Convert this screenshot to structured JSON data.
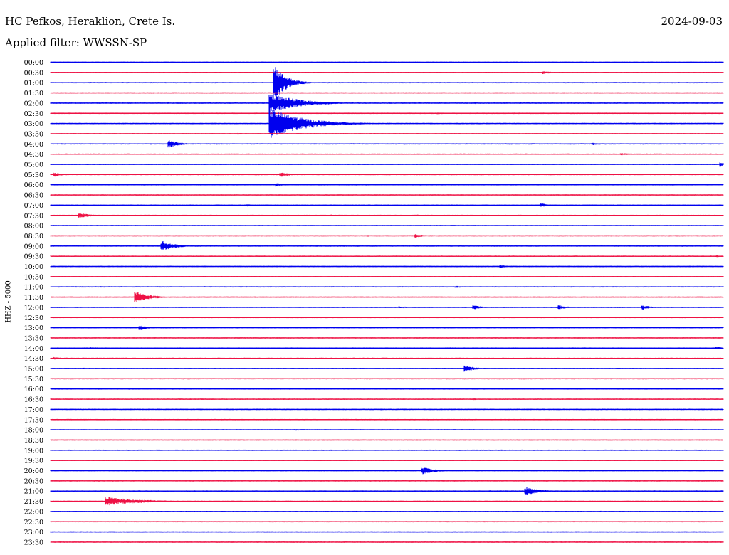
{
  "header": {
    "station": "HC Pefkos, Heraklion, Crete Is.",
    "date": "2024-09-03",
    "filter_prefix": "Applied filter: ",
    "filter_name": "WWSSN-SP"
  },
  "colors": {
    "trace_a": "#0000ee",
    "trace_b": "#ee1144",
    "text": "#000000",
    "background": "#ffffff"
  },
  "chart_data": {
    "type": "line",
    "subtype": "helicorder",
    "ylabel": "HHZ - 5000",
    "rows": [
      "00:00",
      "00:30",
      "01:00",
      "01:30",
      "02:00",
      "02:30",
      "03:00",
      "03:30",
      "04:00",
      "04:30",
      "05:00",
      "05:30",
      "06:00",
      "06:30",
      "07:00",
      "07:30",
      "08:00",
      "08:30",
      "09:00",
      "09:30",
      "10:00",
      "10:30",
      "11:00",
      "11:30",
      "12:00",
      "12:30",
      "13:00",
      "13:30",
      "14:00",
      "14:30",
      "15:00",
      "15:30",
      "16:00",
      "16:30",
      "17:00",
      "17:30",
      "18:00",
      "18:30",
      "19:00",
      "19:30",
      "20:00",
      "20:30",
      "21:00",
      "21:30",
      "22:00",
      "22:30",
      "23:00",
      "23:30"
    ],
    "row_minutes": 30,
    "row_colors_alternate": [
      "#0000ee",
      "#ee1144"
    ],
    "events": [
      {
        "row": 0,
        "minute": 3.5,
        "amp": 1.0,
        "dur": 1.2
      },
      {
        "row": 1,
        "minute": 7.9,
        "amp": 0.8,
        "dur": 1.0
      },
      {
        "row": 1,
        "minute": 19.9,
        "amp": 0.7,
        "dur": 1.2
      },
      {
        "row": 1,
        "minute": 22.0,
        "amp": 2.2,
        "dur": 1.2
      },
      {
        "row": 2,
        "minute": 10.0,
        "amp": 26.0,
        "dur": 1.6
      },
      {
        "row": 4,
        "minute": 9.8,
        "amp": 14.0,
        "dur": 4.0
      },
      {
        "row": 4,
        "minute": 19.0,
        "amp": 1.2,
        "dur": 1.0
      },
      {
        "row": 5,
        "minute": 17.3,
        "amp": 1.2,
        "dur": 1.2
      },
      {
        "row": 6,
        "minute": 9.8,
        "amp": 22.0,
        "dur": 4.5
      },
      {
        "row": 7,
        "minute": 8.4,
        "amp": 1.2,
        "dur": 1.0
      },
      {
        "row": 8,
        "minute": 5.3,
        "amp": 5.0,
        "dur": 1.6
      },
      {
        "row": 8,
        "minute": 24.2,
        "amp": 1.8,
        "dur": 1.0
      },
      {
        "row": 9,
        "minute": 25.5,
        "amp": 1.5,
        "dur": 3.0
      },
      {
        "row": 10,
        "minute": 29.9,
        "amp": 3.5,
        "dur": 0.6
      },
      {
        "row": 11,
        "minute": 0.2,
        "amp": 3.0,
        "dur": 1.0
      },
      {
        "row": 11,
        "minute": 10.3,
        "amp": 3.2,
        "dur": 1.4
      },
      {
        "row": 12,
        "minute": 10.1,
        "amp": 2.5,
        "dur": 0.8
      },
      {
        "row": 14,
        "minute": 8.8,
        "amp": 2.0,
        "dur": 1.0
      },
      {
        "row": 14,
        "minute": 21.9,
        "amp": 2.8,
        "dur": 1.0
      },
      {
        "row": 15,
        "minute": 1.3,
        "amp": 4.0,
        "dur": 1.6
      },
      {
        "row": 15,
        "minute": 12.5,
        "amp": 1.2,
        "dur": 1.2
      },
      {
        "row": 15,
        "minute": 16.3,
        "amp": 1.5,
        "dur": 1.2
      },
      {
        "row": 17,
        "minute": 14.2,
        "amp": 1.2,
        "dur": 1.0
      },
      {
        "row": 17,
        "minute": 16.3,
        "amp": 2.8,
        "dur": 1.2
      },
      {
        "row": 18,
        "minute": 5.0,
        "amp": 7.0,
        "dur": 1.8
      },
      {
        "row": 18,
        "minute": 11.9,
        "amp": 1.2,
        "dur": 1.0
      },
      {
        "row": 19,
        "minute": 29.7,
        "amp": 1.5,
        "dur": 0.8
      },
      {
        "row": 20,
        "minute": 6.9,
        "amp": 1.2,
        "dur": 0.8
      },
      {
        "row": 20,
        "minute": 20.1,
        "amp": 2.0,
        "dur": 1.0
      },
      {
        "row": 21,
        "minute": 14.4,
        "amp": 1.0,
        "dur": 1.2
      },
      {
        "row": 22,
        "minute": 18.1,
        "amp": 1.5,
        "dur": 1.2
      },
      {
        "row": 23,
        "minute": 3.8,
        "amp": 8.0,
        "dur": 2.0
      },
      {
        "row": 24,
        "minute": 15.6,
        "amp": 1.5,
        "dur": 2.0
      },
      {
        "row": 24,
        "minute": 18.9,
        "amp": 3.0,
        "dur": 1.2
      },
      {
        "row": 24,
        "minute": 22.7,
        "amp": 3.0,
        "dur": 1.2
      },
      {
        "row": 24,
        "minute": 26.4,
        "amp": 3.5,
        "dur": 1.2
      },
      {
        "row": 26,
        "minute": 4.0,
        "amp": 3.5,
        "dur": 1.2
      },
      {
        "row": 28,
        "minute": 1.8,
        "amp": 1.5,
        "dur": 2.0
      },
      {
        "row": 28,
        "minute": 29.7,
        "amp": 2.0,
        "dur": 1.0
      },
      {
        "row": 29,
        "minute": 0.2,
        "amp": 1.8,
        "dur": 1.2
      },
      {
        "row": 30,
        "minute": 1.5,
        "amp": 1.2,
        "dur": 1.5
      },
      {
        "row": 30,
        "minute": 18.5,
        "amp": 5.0,
        "dur": 1.4
      },
      {
        "row": 31,
        "minute": 10.0,
        "amp": 1.0,
        "dur": 1.0
      },
      {
        "row": 31,
        "minute": 13.8,
        "amp": 1.0,
        "dur": 1.5
      },
      {
        "row": 32,
        "minute": 9.8,
        "amp": 1.0,
        "dur": 1.5
      },
      {
        "row": 32,
        "minute": 12.5,
        "amp": 1.0,
        "dur": 1.2
      },
      {
        "row": 33,
        "minute": 18.9,
        "amp": 1.2,
        "dur": 1.0
      },
      {
        "row": 34,
        "minute": 14.8,
        "amp": 1.2,
        "dur": 0.5
      },
      {
        "row": 36,
        "minute": 11.0,
        "amp": 1.2,
        "dur": 1.0
      },
      {
        "row": 36,
        "minute": 21.0,
        "amp": 1.0,
        "dur": 0.8
      },
      {
        "row": 40,
        "minute": 16.6,
        "amp": 5.0,
        "dur": 1.8
      },
      {
        "row": 42,
        "minute": 21.2,
        "amp": 6.0,
        "dur": 2.0
      },
      {
        "row": 43,
        "minute": 2.5,
        "amp": 6.0,
        "dur": 5.0
      },
      {
        "row": 44,
        "minute": 24.5,
        "amp": 1.2,
        "dur": 1.0
      },
      {
        "row": 45,
        "minute": 21.8,
        "amp": 1.2,
        "dur": 1.0
      }
    ]
  }
}
